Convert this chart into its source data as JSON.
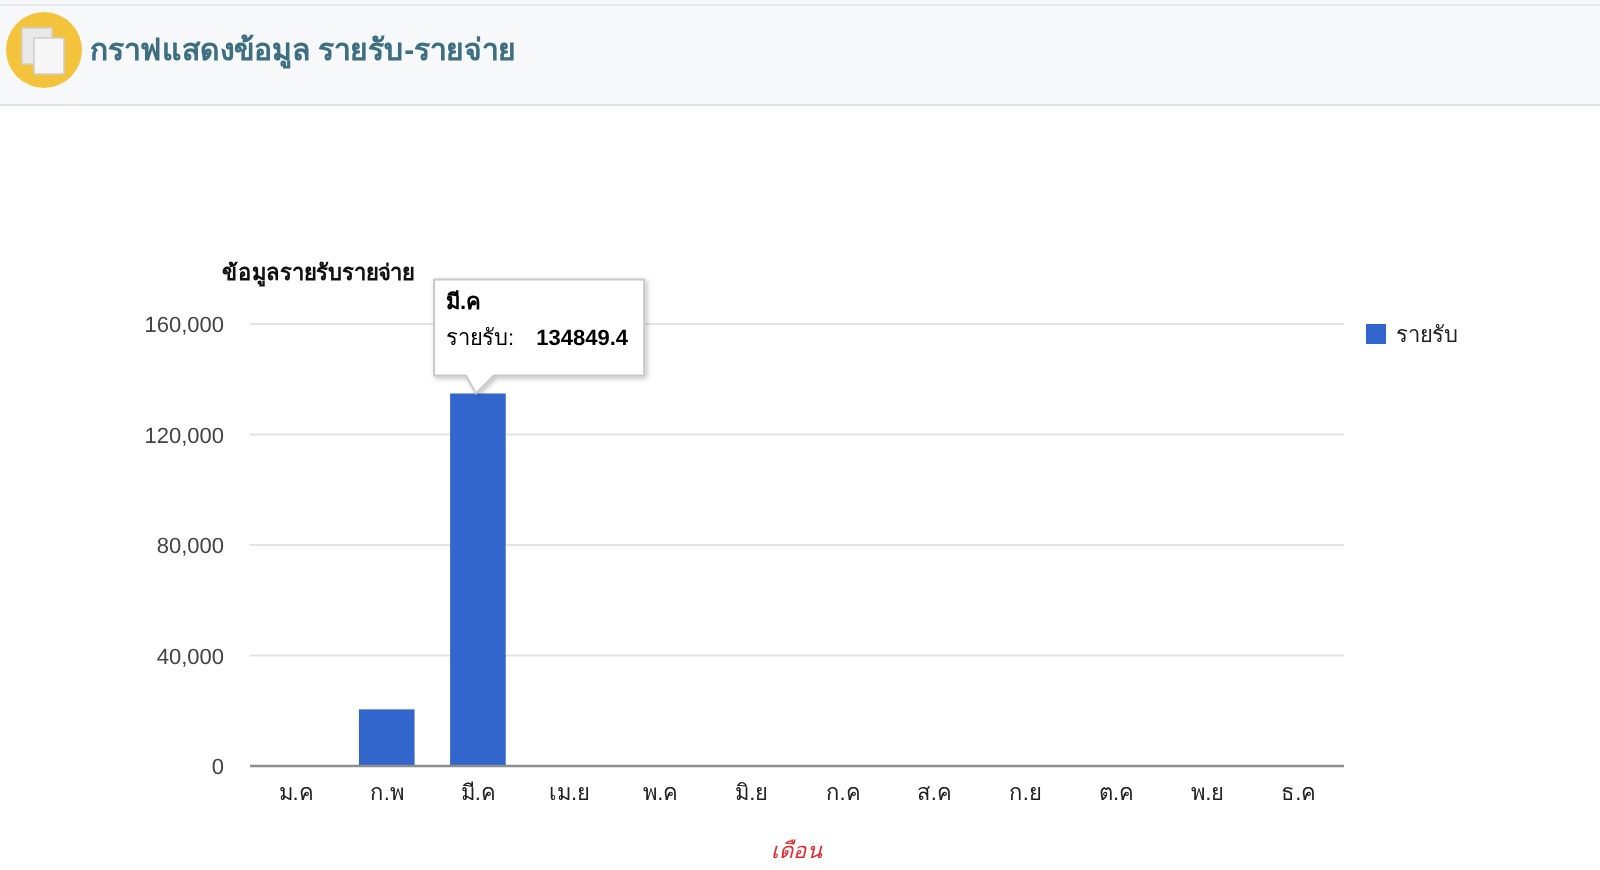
{
  "chart_data": {
    "type": "bar",
    "title": "กราฟแสดงข้อมูล รายรับ-รายจ่าย",
    "subtitle": "ข้อมูลรายรับรายจ่าย",
    "xlabel": "เดือน",
    "categories": [
      "ม.ค",
      "ก.พ",
      "มี.ค",
      "เม.ย",
      "พ.ค",
      "มิ.ย",
      "ก.ค",
      "ส.ค",
      "ก.ย",
      "ต.ค",
      "พ.ย",
      "ธ.ค"
    ],
    "series": [
      {
        "name": "รายรับ",
        "color": "#3366cc",
        "values": [
          0,
          20500,
          134849.4,
          0,
          0,
          0,
          0,
          0,
          0,
          0,
          0,
          0
        ]
      }
    ],
    "annotations": [
      "มี.ค",
      {
        "text": "รายรับ: 134849.4",
        "x": "มี.ค",
        "y": 134849.4
      }
    ],
    "ylim": [
      0,
      160000
    ],
    "yticks": [
      0,
      {
        "value": 40000,
        "label": "40,000"
      },
      {
        "value": 80000,
        "label": "80,000"
      },
      {
        "value": 120000,
        "label": "120,000"
      },
      {
        "value": 160000,
        "label": "160,000"
      }
    ],
    "grid": "y",
    "legend": "top right"
  }
}
